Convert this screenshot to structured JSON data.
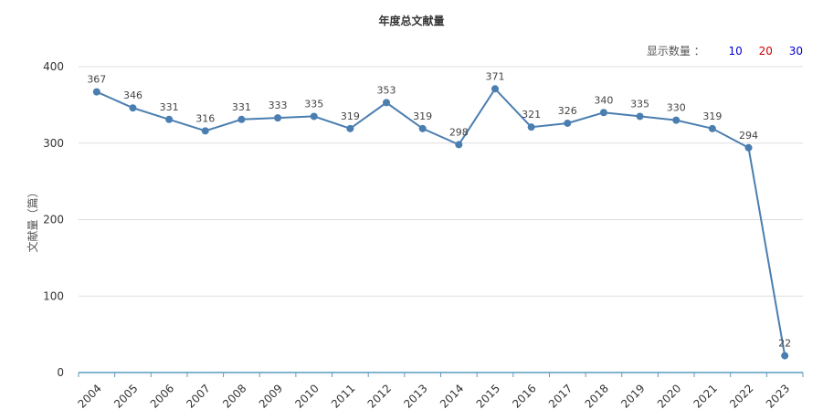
{
  "header": {
    "title": "年度总文献量",
    "count_label": "显示数量 ：",
    "count_options": [
      {
        "label": "10",
        "color": "#0000cc"
      },
      {
        "label": "20",
        "color": "#cc0000"
      },
      {
        "label": "30",
        "color": "#0000cc"
      }
    ]
  },
  "chart_data": {
    "type": "line",
    "title": "年度总文献量",
    "xlabel": "",
    "ylabel": "文献量（篇）",
    "ylim": [
      0,
      400
    ],
    "yticks": [
      0,
      100,
      200,
      300,
      400
    ],
    "grid": true,
    "data_labels": true,
    "line_color": "#4a7eb0",
    "categories": [
      "2004",
      "2005",
      "2006",
      "2007",
      "2008",
      "2009",
      "2010",
      "2011",
      "2012",
      "2013",
      "2014",
      "2015",
      "2016",
      "2017",
      "2018",
      "2019",
      "2020",
      "2021",
      "2022",
      "2023"
    ],
    "series": [
      {
        "values": [
          367,
          346,
          331,
          316,
          331,
          333,
          335,
          319,
          353,
          319,
          298,
          371,
          321,
          326,
          340,
          335,
          330,
          319,
          294,
          22
        ]
      }
    ]
  }
}
